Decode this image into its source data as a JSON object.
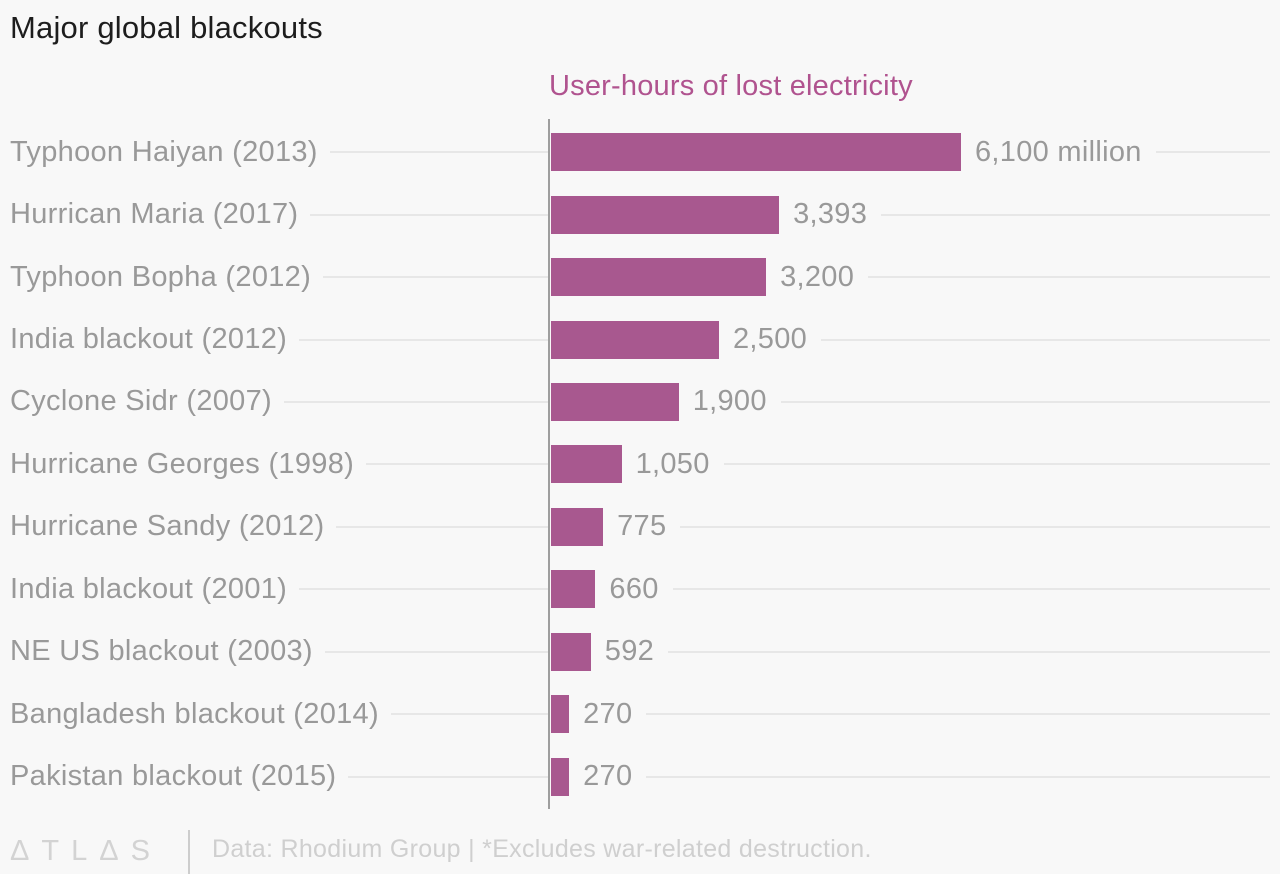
{
  "title": "Major global blackouts",
  "subtitle": "User-hours of lost electricity",
  "footer": {
    "logo": "ΔTLΔS",
    "note": "Data: Rhodium Group | *Excludes war-related destruction."
  },
  "colors": {
    "background": "#f8f8f8",
    "title": "#1d1d1d",
    "subtitle": "#b0538f",
    "bar": "#a8588f",
    "label": "#999999",
    "leader": "#e7e7e7",
    "axis": "#9e9e9e",
    "footer_logo": "#d3d3d3",
    "footer_separator": "#cdcdcd",
    "footer_text": "#cfcfcf"
  },
  "chart_data": {
    "type": "bar",
    "orientation": "horizontal",
    "title": "Major global blackouts",
    "value_axis_title": "User-hours of lost electricity",
    "categories": [
      "Typhoon Haiyan (2013)",
      "Hurrican Maria (2017)",
      "Typhoon Bopha (2012)",
      "India blackout (2012)",
      "Cyclone Sidr (2007)",
      "Hurricane Georges (1998)",
      "Hurricane Sandy (2012)",
      "India blackout (2001)",
      "NE US blackout (2003)",
      "Bangladesh blackout (2014)",
      "Pakistan blackout (2015)"
    ],
    "values": [
      6100,
      3393,
      3200,
      2500,
      1900,
      1050,
      775,
      660,
      592,
      270,
      270
    ],
    "value_labels": [
      "6,100 million",
      "3,393",
      "3,200",
      "2,500",
      "1,900",
      "1,050",
      "775",
      "660",
      "592",
      "270",
      "270"
    ],
    "xlim": [
      0,
      6100
    ],
    "grid": false,
    "legend": false,
    "source": "Rhodium Group"
  }
}
